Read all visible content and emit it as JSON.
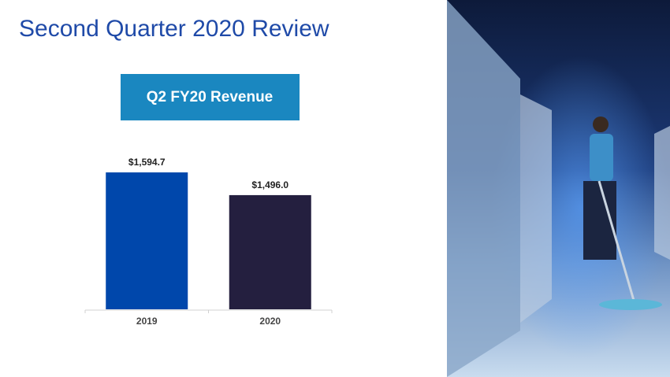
{
  "chart_data": {
    "type": "bar",
    "title": "Second Quarter 2020 Review",
    "subtitle": "Q2 FY20 Revenue",
    "categories": [
      "2019",
      "2020"
    ],
    "values": [
      1594.7,
      1496.0
    ],
    "value_labels": [
      "$1,594.7",
      "$1,496.0"
    ],
    "colors": [
      "#0047ab",
      "#241f3f"
    ],
    "ylim": [
      1000,
      1800
    ]
  }
}
